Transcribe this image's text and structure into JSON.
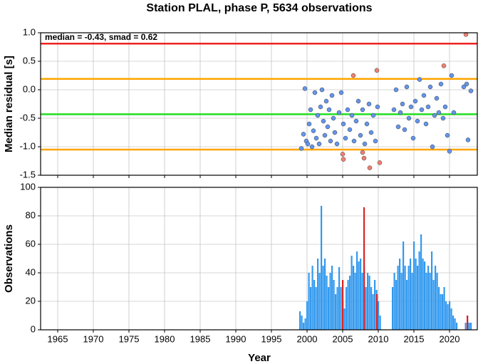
{
  "chart_data": [
    {
      "type": "scatter",
      "title": "Station PLAL, phase P, 5634 observations",
      "ylabel": "Median residual [s]",
      "annotation": "median = -0.43, smad = 0.62",
      "xlim": [
        1962.6,
        2023.9
      ],
      "xticks": [
        1965,
        1970,
        1975,
        1980,
        1985,
        1990,
        1995,
        2000,
        2005,
        2010,
        2015,
        2020
      ],
      "ylim": [
        -1.5,
        1.0
      ],
      "yticks": [
        {
          "value": 1.0,
          "label": "1.0"
        },
        0.5,
        {
          "value": 0.0,
          "label": "0.0"
        },
        -0.5,
        {
          "value": -1.0,
          "label": "-1.0"
        },
        -1.5
      ],
      "grid": true,
      "hlines": [
        {
          "value": 0.81,
          "color": "#ee2222"
        },
        {
          "value": 0.19,
          "color": "#ffa500"
        },
        {
          "value": -0.43,
          "color": "#22dd22"
        },
        {
          "value": -1.05,
          "color": "#ffa500"
        }
      ],
      "series": [
        {
          "color": "#6495ed",
          "x": [
            1999.2,
            1999.5,
            1999.7,
            1999.9,
            2000.1,
            2000.3,
            2000.5,
            2000.7,
            2000.9,
            2001.1,
            2001.3,
            2001.5,
            2001.7,
            2001.9,
            2002.1,
            2002.3,
            2002.5,
            2002.7,
            2002.9,
            2003.1,
            2003.3,
            2003.5,
            2003.7,
            2003.9,
            2004.2,
            2004.5,
            2004.8,
            2005.1,
            2005.4,
            2005.7,
            2006.0,
            2006.3,
            2006.6,
            2006.9,
            2007.2,
            2007.5,
            2007.8,
            2008.1,
            2008.4,
            2008.7,
            2009.0,
            2009.3,
            2009.6,
            2009.9,
            2012.2,
            2012.5,
            2012.8,
            2013.1,
            2013.4,
            2013.7,
            2014.0,
            2014.3,
            2014.6,
            2014.9,
            2015.2,
            2015.5,
            2015.8,
            2016.1,
            2016.4,
            2016.7,
            2017.0,
            2017.3,
            2017.6,
            2017.9,
            2018.2,
            2018.5,
            2018.8,
            2019.1,
            2019.4,
            2019.7,
            2020.0,
            2020.3,
            2020.6,
            2022.0,
            2022.4,
            2022.6,
            2023.0
          ],
          "values": [
            -1.03,
            -0.78,
            0.02,
            -0.9,
            -0.95,
            -0.6,
            -0.35,
            -1.0,
            -0.72,
            -0.05,
            -0.85,
            -0.45,
            -0.95,
            -0.3,
            0.0,
            -0.55,
            -0.8,
            -0.2,
            -0.65,
            -0.35,
            -0.9,
            -0.1,
            -0.5,
            -0.75,
            -0.95,
            -0.4,
            -0.05,
            -0.6,
            -0.85,
            -0.35,
            -0.7,
            -0.45,
            -0.9,
            -0.55,
            -0.2,
            -0.8,
            -0.35,
            -0.95,
            -0.6,
            -0.25,
            -0.75,
            -0.45,
            -0.9,
            -0.3,
            -0.35,
            0.0,
            -0.65,
            -0.4,
            -0.25,
            -0.7,
            0.05,
            -0.5,
            -0.3,
            -0.85,
            -0.2,
            -0.55,
            0.18,
            -0.35,
            -0.1,
            -0.6,
            -0.3,
            0.05,
            -1.0,
            -0.45,
            -0.15,
            -0.4,
            0.1,
            -0.5,
            -0.3,
            -0.8,
            -1.08,
            0.25,
            -0.4,
            0.05,
            0.1,
            -0.88,
            -0.02
          ]
        },
        {
          "color": "#f08070",
          "x": [
            2006.5,
            2009.8,
            2019.2,
            2005.0,
            2005.1,
            2007.8,
            2008.0,
            2008.8,
            2010.2,
            2022.3
          ],
          "values": [
            0.25,
            0.34,
            0.42,
            -1.13,
            -1.22,
            -1.1,
            -1.2,
            -1.37,
            -1.28,
            0.97
          ]
        }
      ]
    },
    {
      "type": "histogram",
      "xlabel": "Year",
      "ylabel": "Observations",
      "xlim": [
        1962.6,
        2023.9
      ],
      "xticks": [
        1965,
        1970,
        1975,
        1980,
        1985,
        1990,
        1995,
        2000,
        2005,
        2010,
        2015,
        2020
      ],
      "ylim": [
        0,
        100
      ],
      "yticks": [
        0,
        20,
        40,
        60,
        80,
        100
      ],
      "grid": true,
      "series": [
        {
          "color": "#3399ee",
          "x": [
            1999,
            1999.25,
            1999.5,
            1999.75,
            2000,
            2000.25,
            2000.5,
            2000.75,
            2001,
            2001.25,
            2001.5,
            2001.75,
            2002,
            2002.25,
            2002.5,
            2002.75,
            2003,
            2003.25,
            2003.5,
            2003.75,
            2004,
            2004.25,
            2004.5,
            2004.75,
            2005,
            2005.25,
            2005.5,
            2005.75,
            2006,
            2006.25,
            2006.5,
            2006.75,
            2007,
            2007.25,
            2007.5,
            2007.75,
            2008,
            2008.25,
            2008.5,
            2008.75,
            2009,
            2009.25,
            2009.5,
            2009.75,
            2010,
            2010.25,
            2012,
            2012.25,
            2012.5,
            2012.75,
            2013,
            2013.25,
            2013.5,
            2013.75,
            2014,
            2014.25,
            2014.5,
            2014.75,
            2015,
            2015.25,
            2015.5,
            2015.75,
            2016,
            2016.25,
            2016.5,
            2016.75,
            2017,
            2017.25,
            2017.5,
            2017.75,
            2018,
            2018.25,
            2018.5,
            2018.75,
            2019,
            2019.25,
            2019.5,
            2019.75,
            2020,
            2020.25,
            2020.5,
            2020.75,
            2021,
            2022.25,
            2022.5,
            2022.75,
            2023
          ],
          "values": [
            13,
            10,
            5,
            8,
            20,
            40,
            30,
            45,
            35,
            30,
            50,
            40,
            87,
            45,
            50,
            38,
            30,
            40,
            45,
            35,
            25,
            30,
            44,
            30,
            20,
            15,
            30,
            35,
            38,
            52,
            45,
            40,
            55,
            48,
            50,
            40,
            45,
            30,
            40,
            38,
            30,
            25,
            35,
            28,
            20,
            10,
            30,
            40,
            35,
            45,
            50,
            40,
            62,
            45,
            35,
            45,
            50,
            40,
            62,
            50,
            45,
            55,
            67,
            50,
            48,
            40,
            45,
            40,
            55,
            35,
            45,
            40,
            30,
            25,
            25,
            30,
            20,
            18,
            20,
            15,
            10,
            8,
            5,
            5,
            10,
            5,
            5
          ]
        },
        {
          "color": "#dd2222",
          "x": [
            2005.0,
            2008.0,
            2009.8,
            2022.5
          ],
          "values": [
            35,
            86,
            25,
            10
          ]
        }
      ]
    }
  ]
}
